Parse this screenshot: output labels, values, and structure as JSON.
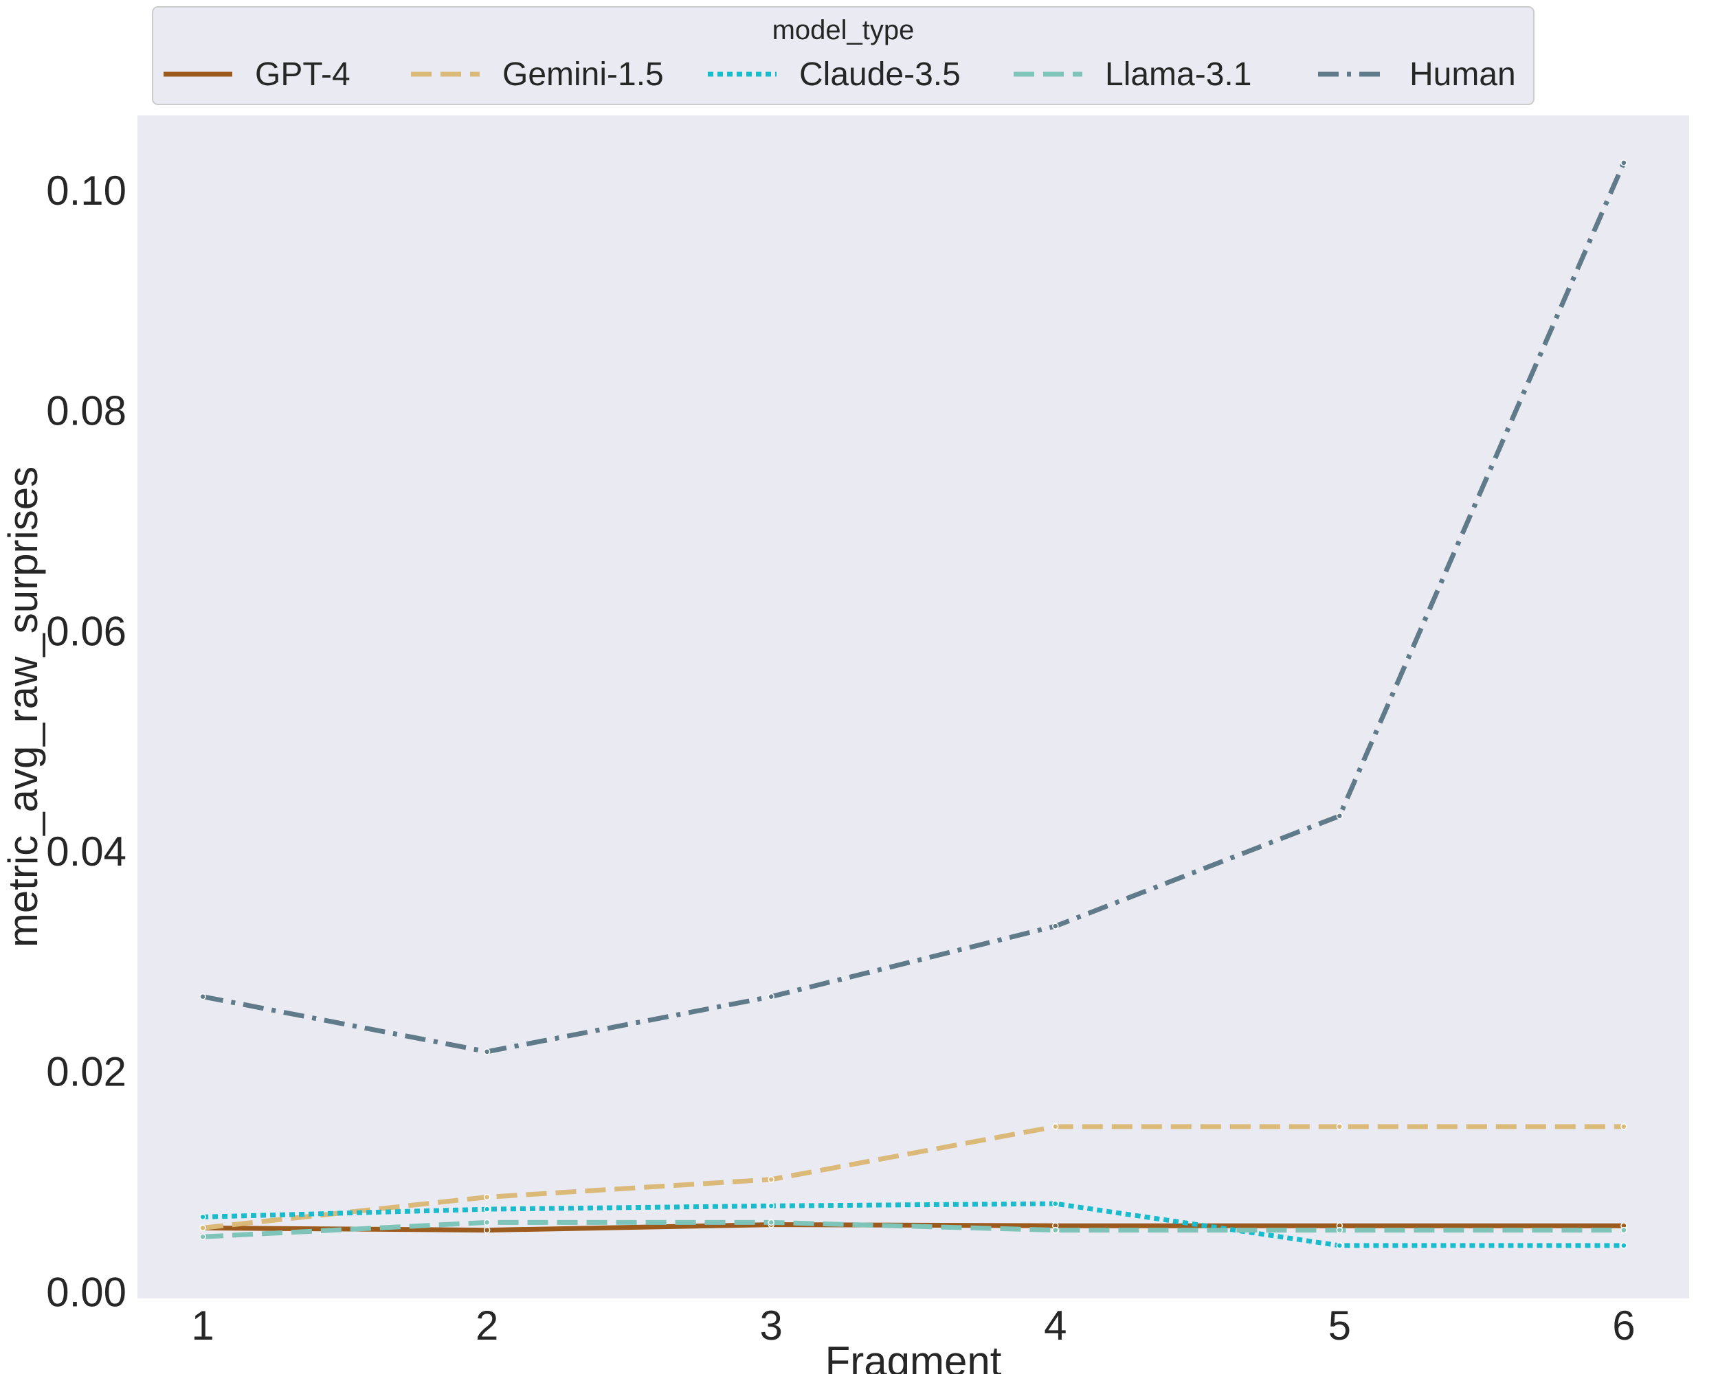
{
  "chart_data": {
    "type": "line",
    "xlabel": "Fragment",
    "ylabel": "metric_avg_raw_surprises",
    "x": [
      1,
      2,
      3,
      4,
      5,
      6
    ],
    "xticks": [
      "1",
      "2",
      "3",
      "4",
      "5",
      "6"
    ],
    "yticks": [
      "0.00",
      "0.02",
      "0.04",
      "0.06",
      "0.08",
      "0.10"
    ],
    "ylim": [
      -0.0006,
      0.1068
    ],
    "grid": false,
    "legend": {
      "title": "model_type",
      "placement": "top (outside plot, single row)"
    },
    "series": [
      {
        "name": "GPT-4",
        "color": "#9c5a1d",
        "dash": "solid",
        "values": [
          0.0058,
          0.0056,
          0.0061,
          0.006,
          0.006,
          0.006
        ]
      },
      {
        "name": "Gemini-1.5",
        "color": "#dbb978",
        "dash": "dashed",
        "values": [
          0.0058,
          0.0086,
          0.0102,
          0.015,
          0.015,
          0.015
        ]
      },
      {
        "name": "Claude-3.5",
        "color": "#19bccd",
        "dash": "dotted",
        "values": [
          0.0068,
          0.0075,
          0.0078,
          0.008,
          0.0042,
          0.0042
        ]
      },
      {
        "name": "Llama-3.1",
        "color": "#7fc4b8",
        "dash": "dashed",
        "values": [
          0.005,
          0.0063,
          0.0063,
          0.0056,
          0.0056,
          0.0056
        ]
      },
      {
        "name": "Human",
        "color": "#5f7a88",
        "dash": "dashdot",
        "values": [
          0.0268,
          0.0218,
          0.0268,
          0.0332,
          0.0432,
          0.1025
        ]
      }
    ]
  }
}
